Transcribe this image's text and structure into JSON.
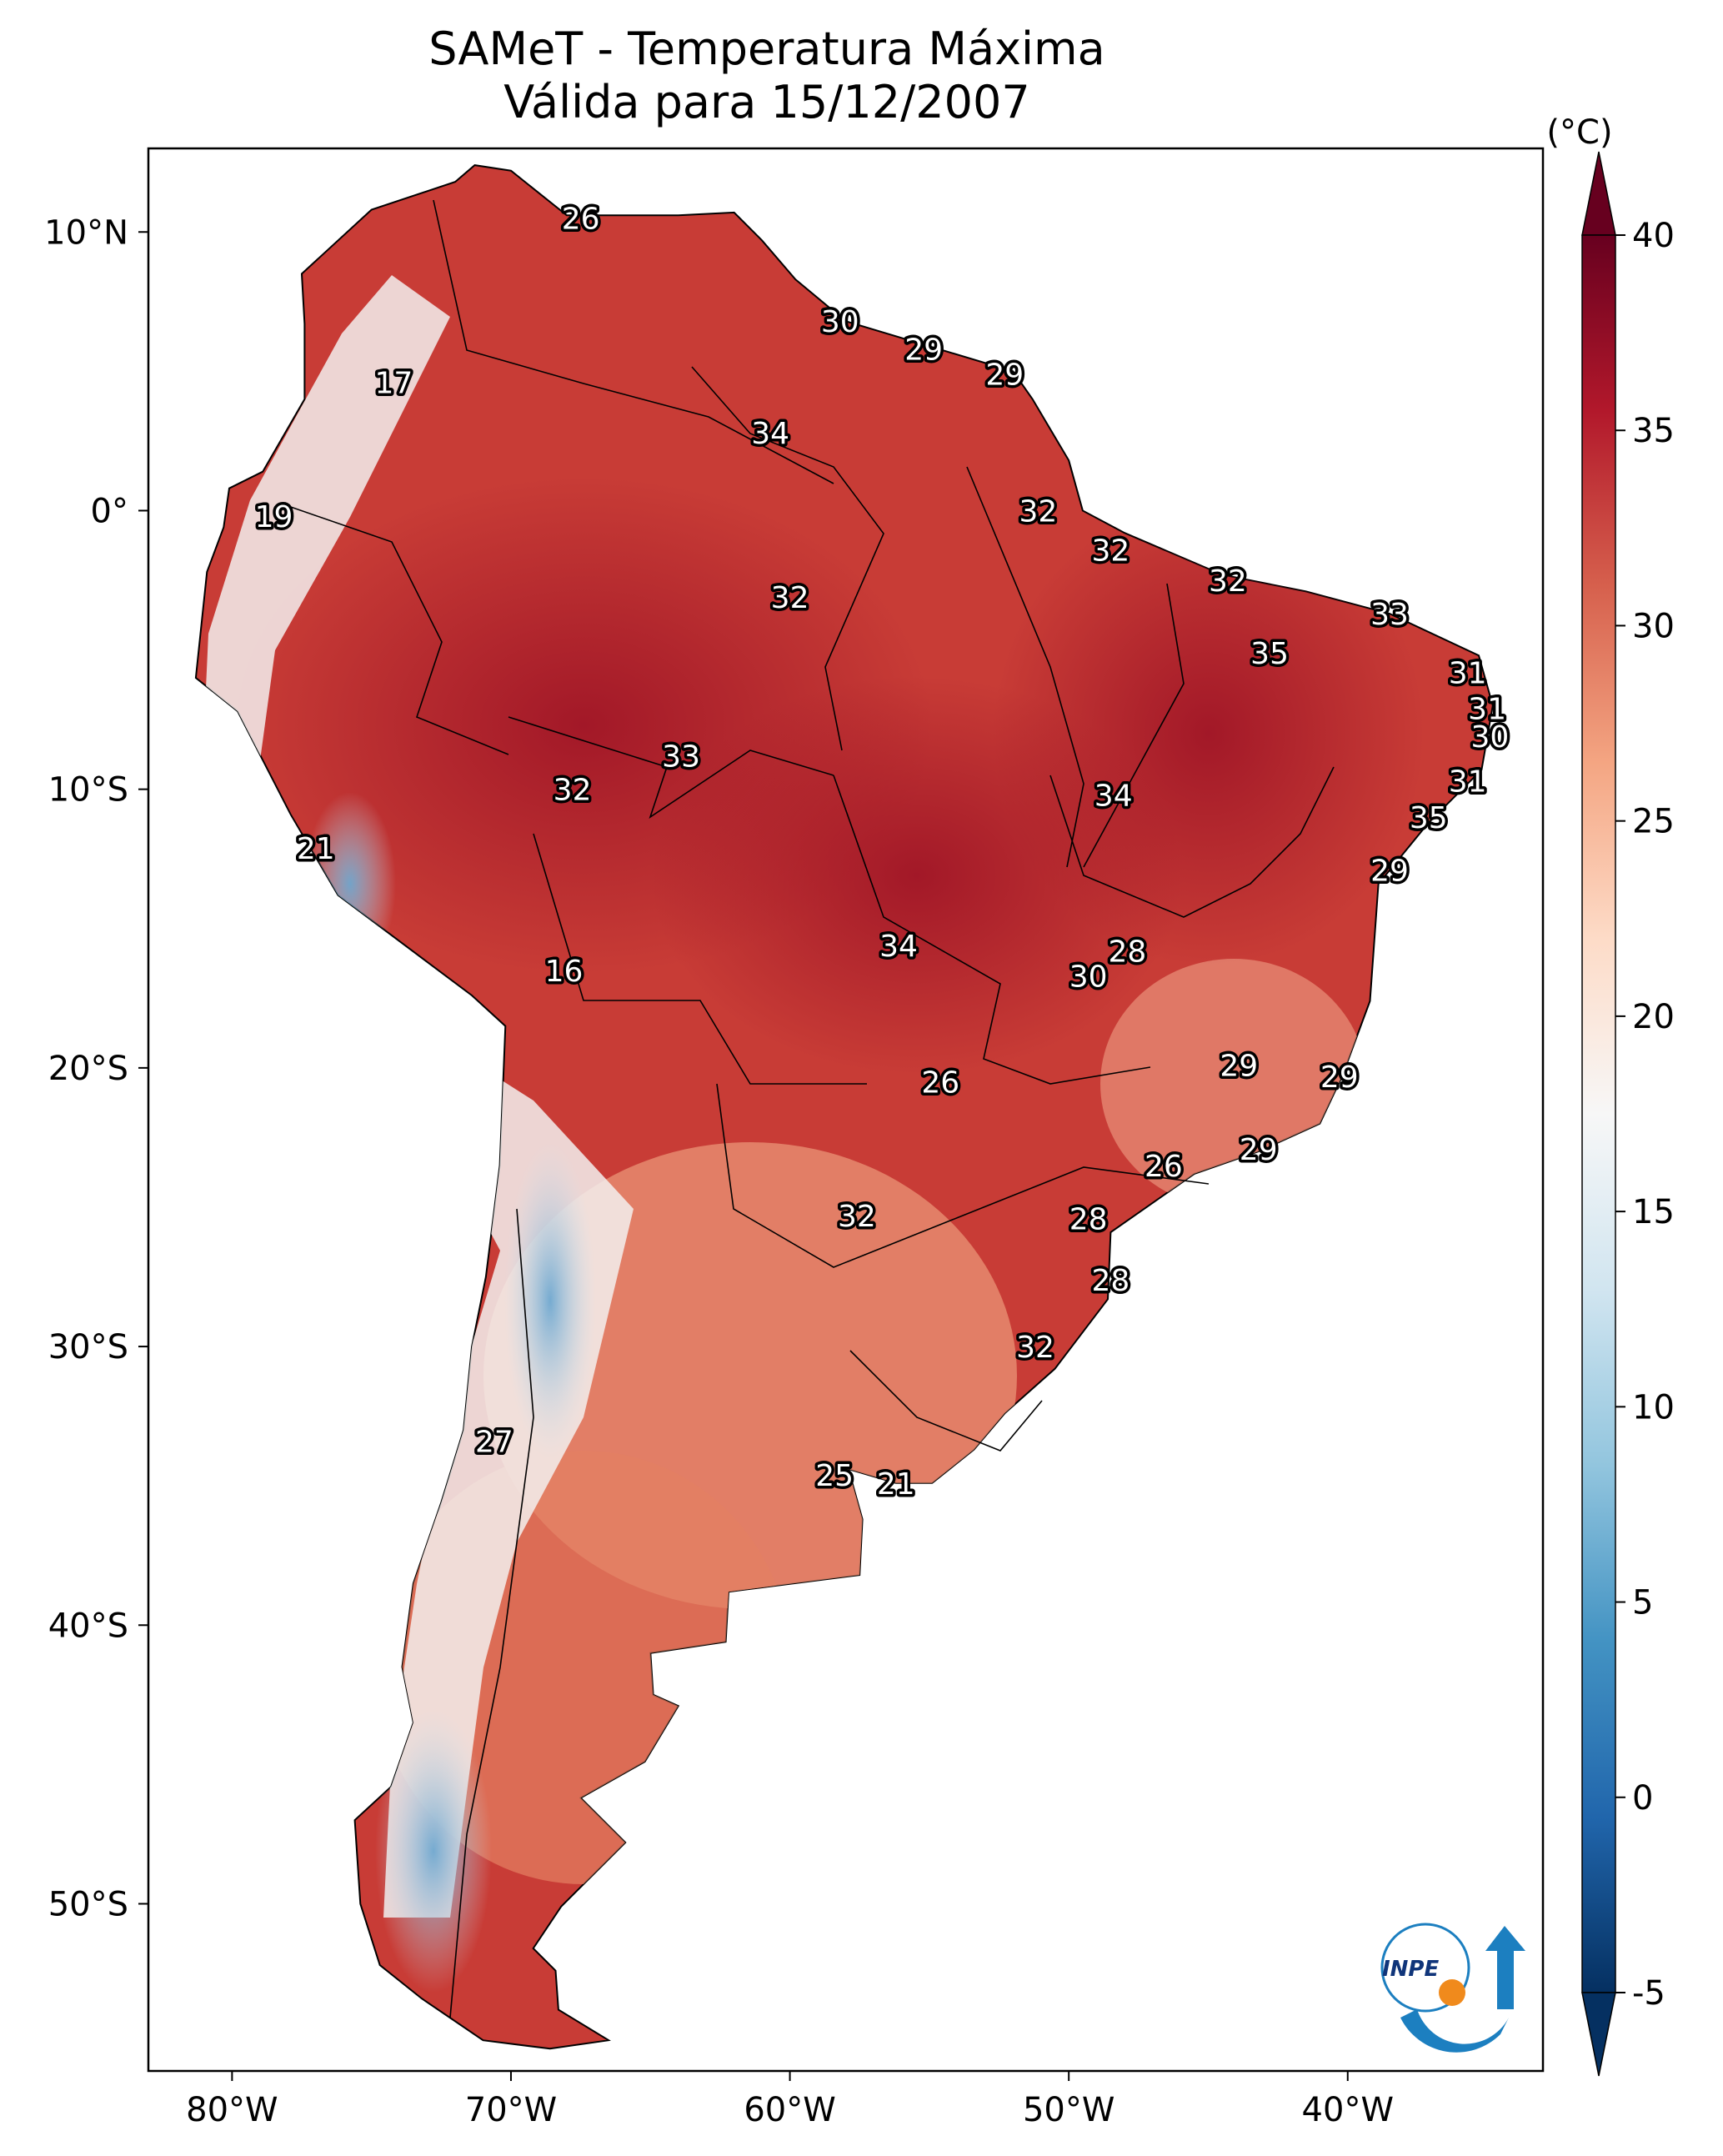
{
  "title": {
    "line1": "SAMeT - Temperatura Máxima",
    "line2": "Válida para 15/12/2007"
  },
  "axes": {
    "lon_ticks": [
      "80°W",
      "70°W",
      "60°W",
      "50°W",
      "40°W"
    ],
    "lat_ticks": [
      "10°N",
      "0°",
      "10°S",
      "20°S",
      "30°S",
      "40°S",
      "50°S"
    ]
  },
  "colorbar": {
    "unit": "(°C)",
    "ticks": [
      "40",
      "35",
      "30",
      "25",
      "20",
      "15",
      "10",
      "5",
      "0",
      "-5"
    ],
    "min": -5,
    "max": 40,
    "colors": [
      "#053061",
      "#2166ac",
      "#4393c3",
      "#92c5de",
      "#d1e5f0",
      "#f7f7f7",
      "#fddbc7",
      "#f4a582",
      "#d6604d",
      "#b2182b",
      "#67001f"
    ]
  },
  "labels": [
    {
      "text": "26",
      "lon": -67.5,
      "lat": 10.5
    },
    {
      "text": "17",
      "lon": -74.2,
      "lat": 4.6
    },
    {
      "text": "19",
      "lon": -78.5,
      "lat": -0.2
    },
    {
      "text": "30",
      "lon": -58.2,
      "lat": 6.8
    },
    {
      "text": "29",
      "lon": -55.2,
      "lat": 5.8
    },
    {
      "text": "29",
      "lon": -52.3,
      "lat": 4.9
    },
    {
      "text": "34",
      "lon": -60.7,
      "lat": 2.8
    },
    {
      "text": "32",
      "lon": -51.1,
      "lat": 0.0
    },
    {
      "text": "32",
      "lon": -48.5,
      "lat": -1.4
    },
    {
      "text": "32",
      "lon": -60.0,
      "lat": -3.1
    },
    {
      "text": "32",
      "lon": -44.3,
      "lat": -2.5
    },
    {
      "text": "33",
      "lon": -38.5,
      "lat": -3.7
    },
    {
      "text": "35",
      "lon": -42.8,
      "lat": -5.1
    },
    {
      "text": "31",
      "lon": -35.7,
      "lat": -5.8
    },
    {
      "text": "31",
      "lon": -35.0,
      "lat": -7.1
    },
    {
      "text": "30",
      "lon": -34.9,
      "lat": -8.1
    },
    {
      "text": "33",
      "lon": -63.9,
      "lat": -8.8
    },
    {
      "text": "32",
      "lon": -67.8,
      "lat": -10.0
    },
    {
      "text": "34",
      "lon": -48.4,
      "lat": -10.2
    },
    {
      "text": "31",
      "lon": -35.7,
      "lat": -9.7
    },
    {
      "text": "35",
      "lon": -37.1,
      "lat": -11.0
    },
    {
      "text": "21",
      "lon": -77.0,
      "lat": -12.1
    },
    {
      "text": "29",
      "lon": -38.5,
      "lat": -12.9
    },
    {
      "text": "34",
      "lon": -56.1,
      "lat": -15.6
    },
    {
      "text": "28",
      "lon": -47.9,
      "lat": -15.8
    },
    {
      "text": "30",
      "lon": -49.3,
      "lat": -16.7
    },
    {
      "text": "16",
      "lon": -68.1,
      "lat": -16.5
    },
    {
      "text": "26",
      "lon": -54.6,
      "lat": -20.5
    },
    {
      "text": "29",
      "lon": -43.9,
      "lat": -19.9
    },
    {
      "text": "29",
      "lon": -40.3,
      "lat": -20.3
    },
    {
      "text": "26",
      "lon": -46.6,
      "lat": -23.5
    },
    {
      "text": "29",
      "lon": -43.2,
      "lat": -22.9
    },
    {
      "text": "32",
      "lon": -57.6,
      "lat": -25.3
    },
    {
      "text": "28",
      "lon": -49.3,
      "lat": -25.4
    },
    {
      "text": "28",
      "lon": -48.5,
      "lat": -27.6
    },
    {
      "text": "32",
      "lon": -51.2,
      "lat": -30.0
    },
    {
      "text": "27",
      "lon": -70.6,
      "lat": -33.4
    },
    {
      "text": "25",
      "lon": -58.4,
      "lat": -34.6
    },
    {
      "text": "21",
      "lon": -56.2,
      "lat": -34.9
    }
  ],
  "logo": {
    "text": "INPE"
  }
}
